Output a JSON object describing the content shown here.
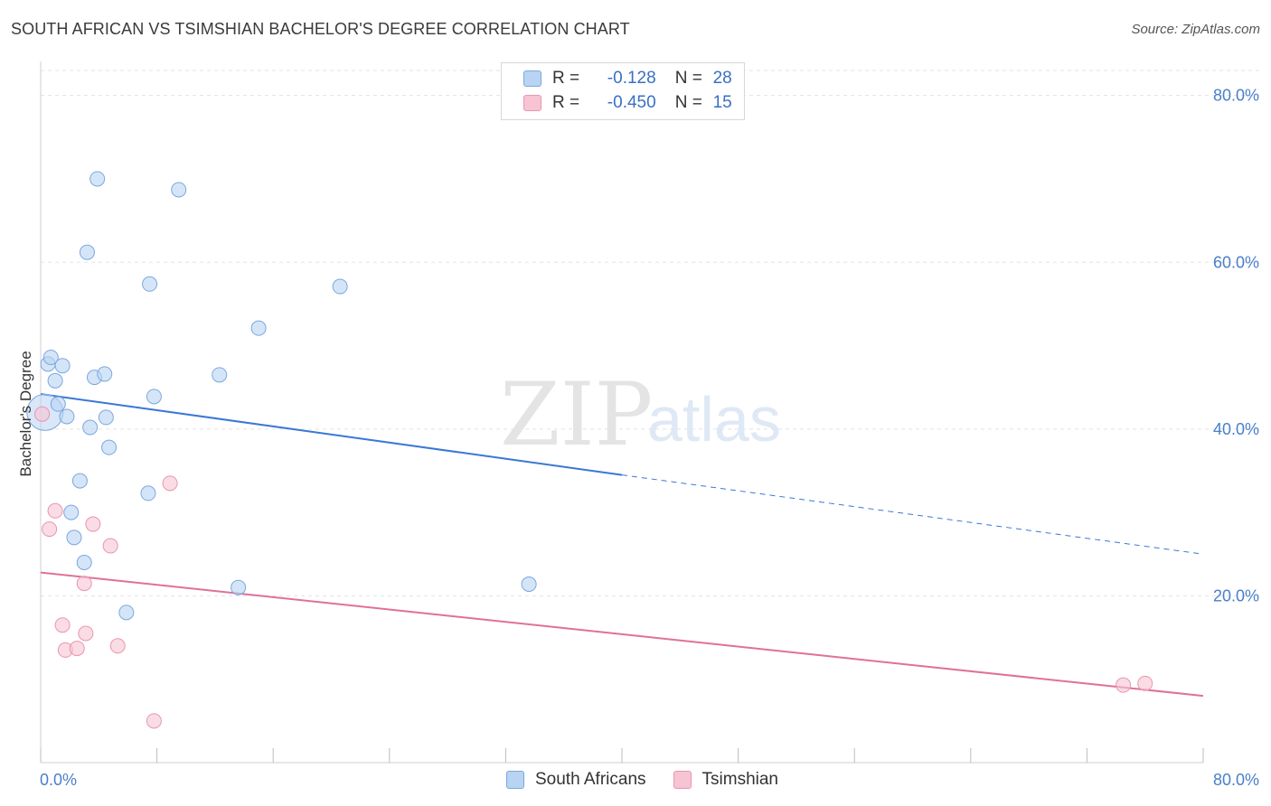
{
  "title": "SOUTH AFRICAN VS TSIMSHIAN BACHELOR'S DEGREE CORRELATION CHART",
  "source": "Source: ZipAtlas.com",
  "watermark": {
    "zip": "ZIP",
    "atlas": "atlas"
  },
  "colors": {
    "blue_fill": "#b9d3f3",
    "blue_stroke": "#7ba7df",
    "blue_line": "#3a78d4",
    "pink_fill": "#f7c4d4",
    "pink_stroke": "#e995b0",
    "pink_line": "#e0709a",
    "grid": "#e3e3e3",
    "tick_text": "#4a7fc9"
  },
  "legend": [
    {
      "r_label": "R =",
      "r_value": "-0.128",
      "n_label": "N =",
      "n_value": "28"
    },
    {
      "r_label": "R =",
      "r_value": "-0.450",
      "n_label": "N =",
      "n_value": "15"
    }
  ],
  "chart_data": {
    "type": "scatter",
    "title": "SOUTH AFRICAN VS TSIMSHIAN BACHELOR'S DEGREE CORRELATION CHART",
    "xlabel": "",
    "ylabel": "Bachelor's Degree",
    "xlim": [
      0,
      80
    ],
    "ylim": [
      0,
      83
    ],
    "x_tick_labels": [
      "0.0%",
      "80.0%"
    ],
    "y_ticks": [
      20,
      40,
      60,
      80
    ],
    "y_tick_labels": [
      "20.0%",
      "40.0%",
      "60.0%",
      "80.0%"
    ],
    "series": [
      {
        "name": "South Africans",
        "color": "#b9d3f3",
        "points": [
          [
            0.3,
            42.0
          ],
          [
            0.5,
            47.8
          ],
          [
            0.7,
            48.6
          ],
          [
            1.0,
            45.8
          ],
          [
            1.2,
            43.0
          ],
          [
            1.5,
            47.6
          ],
          [
            1.8,
            41.5
          ],
          [
            2.1,
            30.0
          ],
          [
            2.3,
            27.0
          ],
          [
            2.7,
            33.8
          ],
          [
            3.0,
            24.0
          ],
          [
            3.2,
            61.2
          ],
          [
            3.4,
            40.2
          ],
          [
            3.7,
            46.2
          ],
          [
            3.9,
            70.0
          ],
          [
            4.4,
            46.6
          ],
          [
            4.5,
            41.4
          ],
          [
            4.7,
            37.8
          ],
          [
            5.9,
            18.0
          ],
          [
            7.4,
            32.3
          ],
          [
            7.5,
            57.4
          ],
          [
            7.8,
            43.9
          ],
          [
            9.5,
            68.7
          ],
          [
            12.3,
            46.5
          ],
          [
            13.6,
            21.0
          ],
          [
            15.0,
            52.1
          ],
          [
            20.6,
            57.1
          ],
          [
            33.6,
            21.4
          ]
        ],
        "trend": {
          "x0": 0,
          "y0": 44.2,
          "x1": 40,
          "y1": 34.5,
          "dashed_to_x": 80,
          "dashed_to_y": 25.0
        }
      },
      {
        "name": "Tsimshian",
        "color": "#f7c4d4",
        "points": [
          [
            0.1,
            41.8
          ],
          [
            0.6,
            28.0
          ],
          [
            1.0,
            30.2
          ],
          [
            1.5,
            16.5
          ],
          [
            1.7,
            13.5
          ],
          [
            2.5,
            13.7
          ],
          [
            3.0,
            21.5
          ],
          [
            3.1,
            15.5
          ],
          [
            3.6,
            28.6
          ],
          [
            4.8,
            26.0
          ],
          [
            5.3,
            14.0
          ],
          [
            7.8,
            5.0
          ],
          [
            8.9,
            33.5
          ],
          [
            74.5,
            9.3
          ],
          [
            76.0,
            9.5
          ]
        ],
        "trend": {
          "x0": 0,
          "y0": 22.8,
          "x1": 80,
          "y1": 8.0
        }
      }
    ]
  }
}
